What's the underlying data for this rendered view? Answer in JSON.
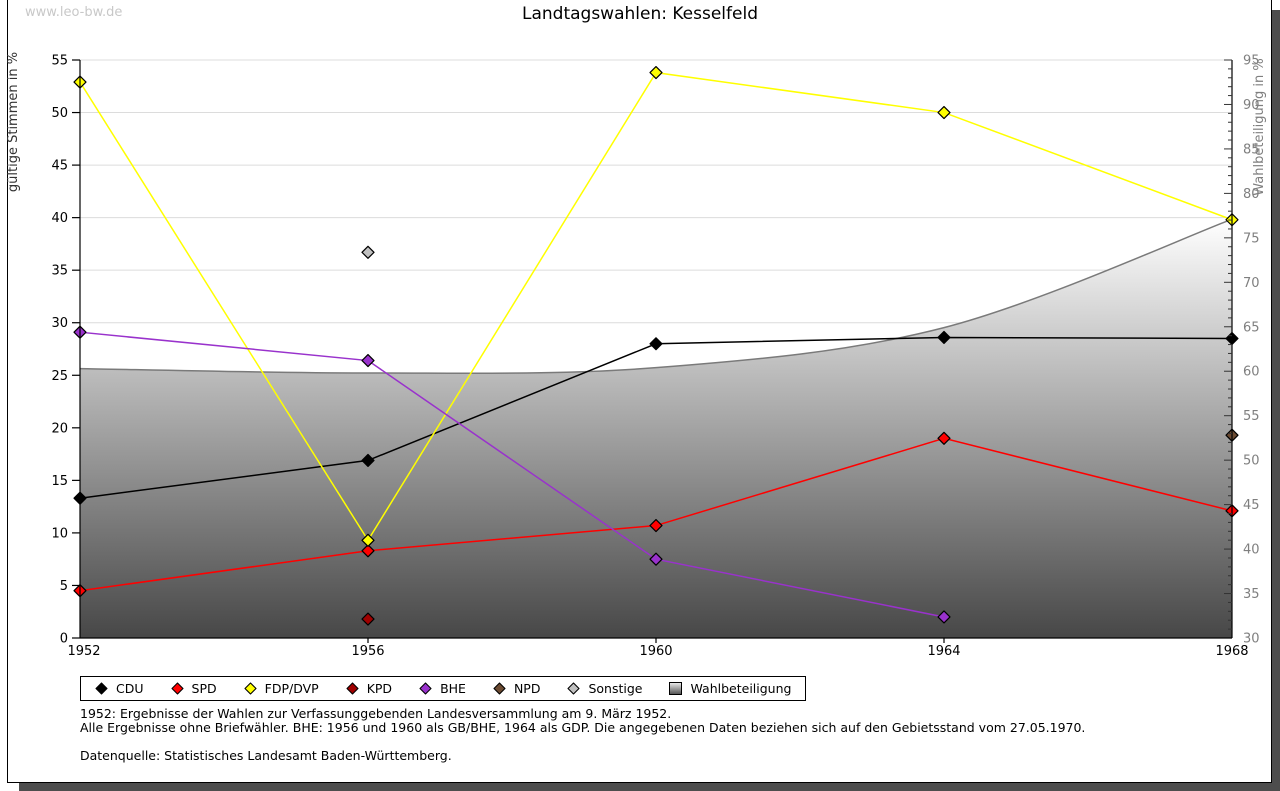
{
  "watermark": "www.leo-bw.de",
  "chart_data": {
    "type": "line",
    "title": "Landtagswahlen: Kesselfeld",
    "x": [
      1952,
      1956,
      1960,
      1964,
      1968
    ],
    "x_tick_labels": [
      "1952",
      "1956",
      "1960",
      "1964",
      "1968"
    ],
    "left_axis": {
      "label": "gültige Stimmen in %",
      "min": 0,
      "max": 55,
      "tick_step": 5
    },
    "right_axis": {
      "label": "Wahlbeteiligung in %",
      "min": 30,
      "max": 95,
      "tick_step": 5,
      "minor_tick_step": 1
    },
    "grid": "horizontal-only",
    "legend_position": "bottom",
    "colors": {
      "grid": "#dcdcdc",
      "axis": "#000000",
      "right_axis_text": "#7f7f7f",
      "area_stroke": "#7a7a7a",
      "area_fill_top": "#ffffff",
      "area_fill_bottom": "#474747"
    },
    "series": [
      {
        "name": "CDU",
        "color": "#000000",
        "axis": "left",
        "values": [
          13.3,
          16.9,
          28.0,
          28.6,
          28.5
        ]
      },
      {
        "name": "SPD",
        "color": "#ff0000",
        "axis": "left",
        "values": [
          4.5,
          8.3,
          10.7,
          19.0,
          12.1
        ]
      },
      {
        "name": "FDP/DVP",
        "color": "#ffff00",
        "axis": "left",
        "values": [
          52.9,
          9.3,
          53.8,
          50.0,
          39.8
        ]
      },
      {
        "name": "KPD",
        "color": "#a00000",
        "axis": "left",
        "values": [
          null,
          1.8,
          null,
          null,
          null
        ]
      },
      {
        "name": "BHE",
        "color": "#9932cc",
        "axis": "left",
        "values": [
          29.1,
          26.4,
          7.5,
          2.0,
          null
        ]
      },
      {
        "name": "NPD",
        "color": "#6b4a31",
        "axis": "left",
        "values": [
          null,
          null,
          null,
          null,
          19.3
        ]
      },
      {
        "name": "Sonstige",
        "color": "#c0c0c0",
        "axis": "left",
        "values": [
          null,
          36.7,
          null,
          null,
          null
        ]
      }
    ],
    "area_series": {
      "name": "Wahlbeteiligung",
      "axis": "right",
      "values": [
        60.3,
        59.8,
        60.4,
        64.9,
        77.1
      ]
    }
  },
  "footnotes": {
    "lines": [
      "1952: Ergebnisse der Wahlen zur Verfassunggebenden Landesversammlung am 9. März 1952.",
      "Alle Ergebnisse ohne Briefwähler. BHE: 1956 und 1960 als GB/BHE, 1964 als GDP. Die angegebenen Daten beziehen sich auf den Gebietsstand vom 27.05.1970.",
      "",
      "Datenquelle: Statistisches Landesamt Baden-Württemberg."
    ]
  }
}
